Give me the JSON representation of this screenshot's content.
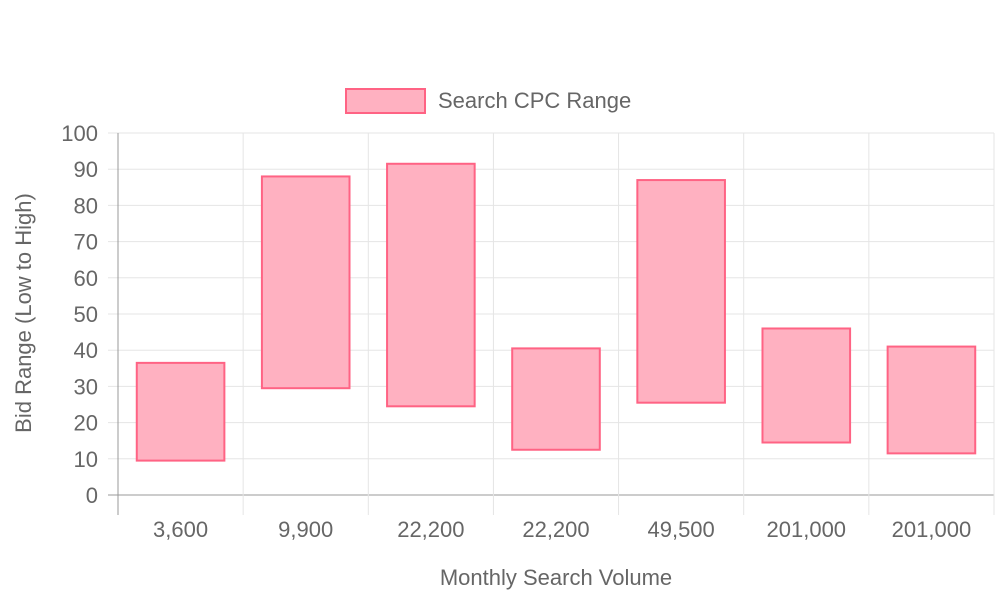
{
  "chart_data": {
    "type": "bar",
    "subtype": "floating-range",
    "categories": [
      "3,600",
      "9,900",
      "22,200",
      "22,200",
      "49,500",
      "201,000",
      "201,000"
    ],
    "series": [
      {
        "name": "Search CPC Range",
        "low": [
          9.5,
          29.5,
          24.5,
          12.5,
          25.5,
          14.5,
          11.5
        ],
        "high": [
          36.5,
          88,
          91.5,
          40.5,
          87,
          46,
          41
        ]
      }
    ],
    "title": "",
    "xlabel": "Monthly Search Volume",
    "ylabel": "Bid Range (Low to High)",
    "ylim": [
      0,
      100
    ],
    "yticks": [
      0,
      10,
      20,
      30,
      40,
      50,
      60,
      70,
      80,
      90,
      100
    ],
    "grid": true,
    "legend_position": "top-center",
    "colors": {
      "bar_fill": "#ffb1c1",
      "bar_stroke": "#ff6384",
      "grid": "#e5e5e5",
      "axis": "#999999",
      "text": "#666666"
    }
  }
}
